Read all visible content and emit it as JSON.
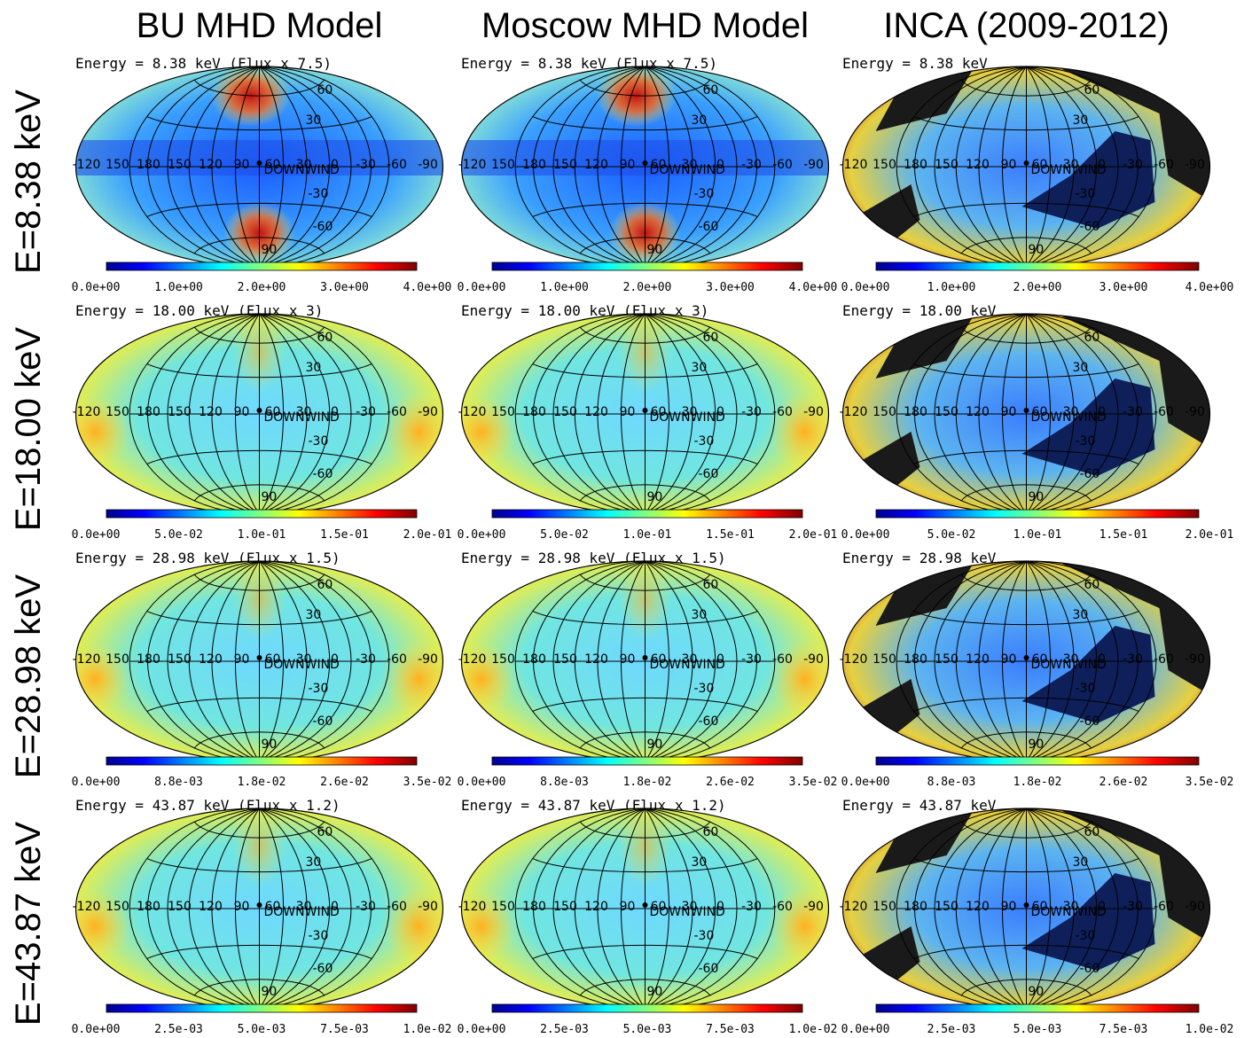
{
  "columns": [
    "BU MHD Model",
    "Moscow MHD Model",
    "INCA (2009-2012)"
  ],
  "rows": [
    {
      "label": "E=8.38 keV",
      "energy": [
        "Energy =   8.38 keV (Flux x 7.5)",
        "Energy =   8.38 keV (Flux x 7.5)",
        "Energy =   8.38 keV"
      ],
      "colorbar": [
        "0.0e+00",
        "1.0e+00",
        "2.0e+00",
        "3.0e+00",
        "4.0e+00"
      ]
    },
    {
      "label": "E=18.00 keV",
      "energy": [
        "Energy =  18.00 keV (Flux x 3)",
        "Energy =  18.00 keV (Flux x 3)",
        "Energy =  18.00 keV"
      ],
      "colorbar": [
        "0.0e+00",
        "5.0e-02",
        "1.0e-01",
        "1.5e-01",
        "2.0e-01"
      ]
    },
    {
      "label": "E=28.98 keV",
      "energy": [
        "Energy =  28.98 keV (Flux x 1.5)",
        "Energy =  28.98 keV (Flux x 1.5)",
        "Energy =  28.98 keV"
      ],
      "colorbar": [
        "0.0e+00",
        "8.8e-03",
        "1.8e-02",
        "2.6e-02",
        "3.5e-02"
      ]
    },
    {
      "label": "E=43.87 keV",
      "energy": [
        "Energy =  43.87 keV (Flux x 1.2)",
        "Energy =  43.87 keV (Flux x 1.2)",
        "Energy =  43.87 keV"
      ],
      "colorbar": [
        "0.0e+00",
        "2.5e-03",
        "5.0e-03",
        "7.5e-03",
        "1.0e-02"
      ]
    }
  ],
  "grid": {
    "lon": [
      "-120",
      "150",
      "180",
      "150",
      "120",
      "90",
      "60",
      "30",
      "0",
      "-30",
      "-60",
      "-90"
    ],
    "lat": [
      "60",
      "30",
      "-30",
      "-60",
      "90"
    ],
    "marker": "DOWNWIND"
  }
}
